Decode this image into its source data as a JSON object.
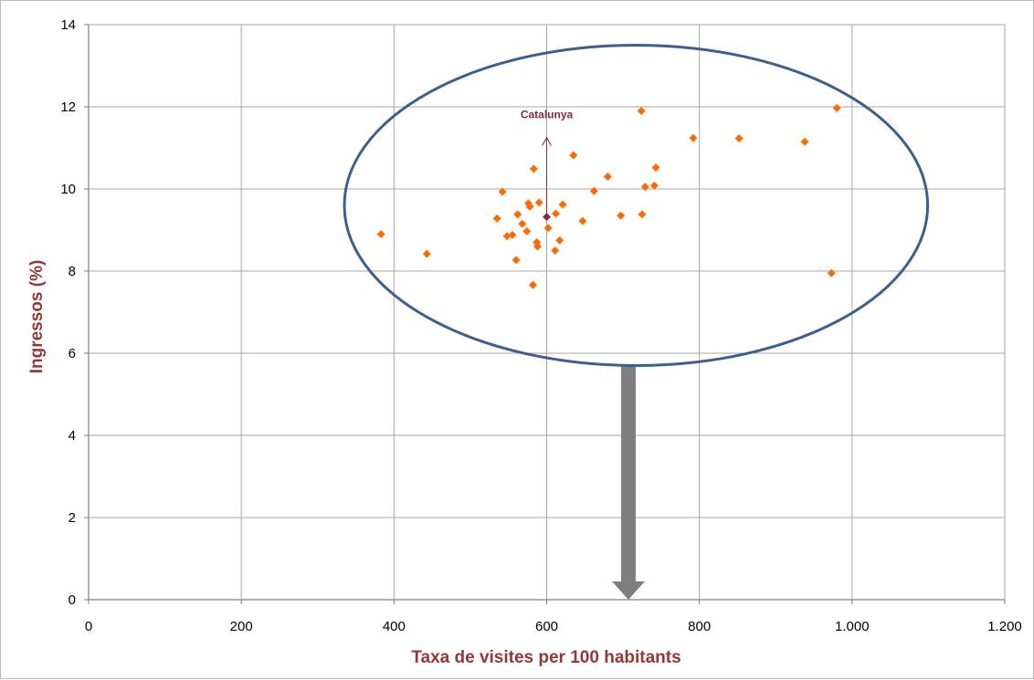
{
  "chart_data": {
    "type": "scatter",
    "title": "",
    "xlabel": "Taxa de visites per 100 habitants",
    "ylabel": "Ingressos (%)",
    "xlim": [
      0,
      1200
    ],
    "ylim": [
      0,
      14
    ],
    "x_ticks": [
      {
        "value": 0,
        "label": "0"
      },
      {
        "value": 200,
        "label": "200"
      },
      {
        "value": 400,
        "label": "400"
      },
      {
        "value": 600,
        "label": "600"
      },
      {
        "value": 800,
        "label": "800"
      },
      {
        "value": 1000,
        "label": "1.000"
      },
      {
        "value": 1200,
        "label": "1.200"
      }
    ],
    "y_ticks": [
      {
        "value": 0,
        "label": "0"
      },
      {
        "value": 2,
        "label": "2"
      },
      {
        "value": 4,
        "label": "4"
      },
      {
        "value": 6,
        "label": "6"
      },
      {
        "value": 8,
        "label": "8"
      },
      {
        "value": 10,
        "label": "10"
      },
      {
        "value": 12,
        "label": "12"
      },
      {
        "value": 14,
        "label": "14"
      }
    ],
    "grid": true,
    "legend": "none",
    "colors": {
      "points": "#ff6a00",
      "highlight": "#8b2a3a",
      "axis_title": "#953735",
      "ellipse": "#3b5f8f",
      "big_arrow": "#7f7f7f",
      "grid": "#a6a6a6"
    },
    "points": [
      {
        "x": 383,
        "y": 8.9
      },
      {
        "x": 443,
        "y": 8.42
      },
      {
        "x": 535,
        "y": 9.28
      },
      {
        "x": 542,
        "y": 9.93
      },
      {
        "x": 548,
        "y": 8.85
      },
      {
        "x": 555,
        "y": 8.88
      },
      {
        "x": 560,
        "y": 8.27
      },
      {
        "x": 562,
        "y": 9.38
      },
      {
        "x": 568,
        "y": 9.15
      },
      {
        "x": 574,
        "y": 8.97
      },
      {
        "x": 576,
        "y": 9.65
      },
      {
        "x": 578,
        "y": 9.57
      },
      {
        "x": 582,
        "y": 7.66
      },
      {
        "x": 583,
        "y": 10.49
      },
      {
        "x": 587,
        "y": 8.7
      },
      {
        "x": 588,
        "y": 8.6
      },
      {
        "x": 590,
        "y": 9.67
      },
      {
        "x": 602,
        "y": 9.05
      },
      {
        "x": 611,
        "y": 8.5
      },
      {
        "x": 612,
        "y": 9.4
      },
      {
        "x": 617,
        "y": 8.75
      },
      {
        "x": 621,
        "y": 9.62
      },
      {
        "x": 635,
        "y": 10.82
      },
      {
        "x": 647,
        "y": 9.22
      },
      {
        "x": 662,
        "y": 9.95
      },
      {
        "x": 680,
        "y": 10.3
      },
      {
        "x": 697,
        "y": 9.35
      },
      {
        "x": 724,
        "y": 11.9
      },
      {
        "x": 725,
        "y": 9.38
      },
      {
        "x": 729,
        "y": 10.05
      },
      {
        "x": 741,
        "y": 10.08
      },
      {
        "x": 743,
        "y": 10.52
      },
      {
        "x": 792,
        "y": 11.24
      },
      {
        "x": 852,
        "y": 11.23
      },
      {
        "x": 938,
        "y": 11.15
      },
      {
        "x": 973,
        "y": 7.95
      },
      {
        "x": 980,
        "y": 11.97
      }
    ],
    "highlight_point": {
      "x": 600,
      "y": 9.32,
      "label": "Catalunya"
    },
    "annotations": {
      "ellipse_center": {
        "x": 717,
        "y": 9.6
      },
      "ellipse_radius_x": 382,
      "ellipse_radius_y": 3.9,
      "down_arrow_x": 707,
      "down_arrow_from_y": 5.7,
      "down_arrow_to_y": 0
    }
  }
}
